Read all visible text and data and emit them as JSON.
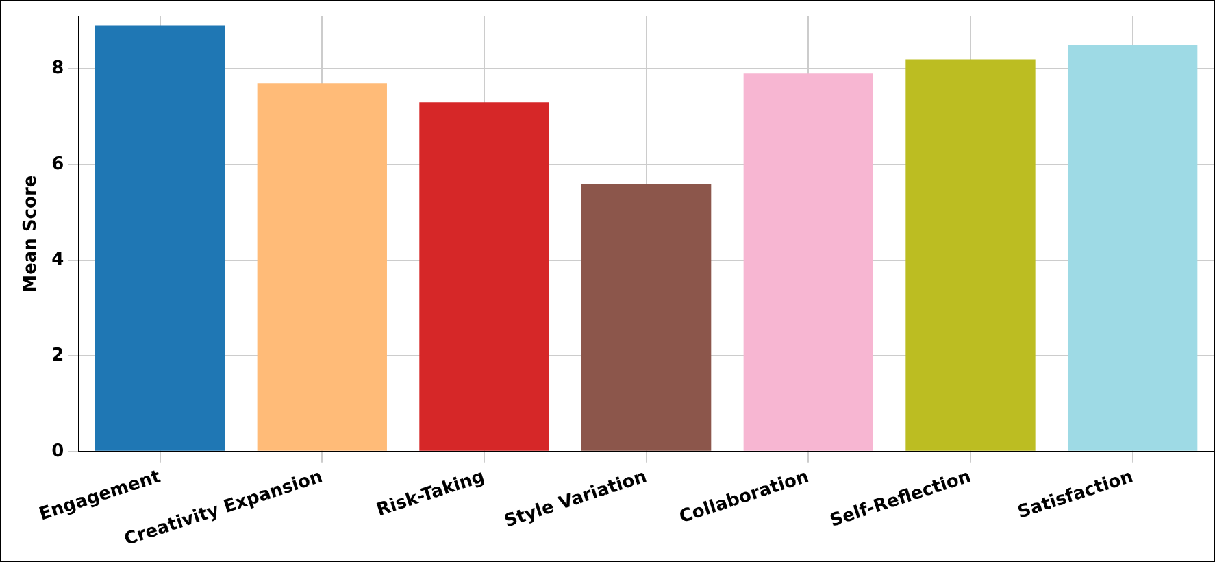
{
  "chart_data": {
    "type": "bar",
    "ylabel": "Mean Score",
    "categories": [
      "Engagement",
      "Creativity Expansion",
      "Risk-Taking",
      "Style Variation",
      "Collaboration",
      "Self-Reflection",
      "Satisfaction"
    ],
    "values": [
      8.9,
      7.7,
      7.3,
      5.6,
      7.9,
      8.2,
      8.5
    ],
    "colors": [
      "#1f77b4",
      "#ffbb78",
      "#d62728",
      "#8c564b",
      "#f7b6d2",
      "#bcbd22",
      "#9edae5"
    ],
    "ylim": [
      0,
      9.1
    ],
    "yticks": [
      0,
      2,
      4,
      6,
      8
    ],
    "grid": true
  }
}
